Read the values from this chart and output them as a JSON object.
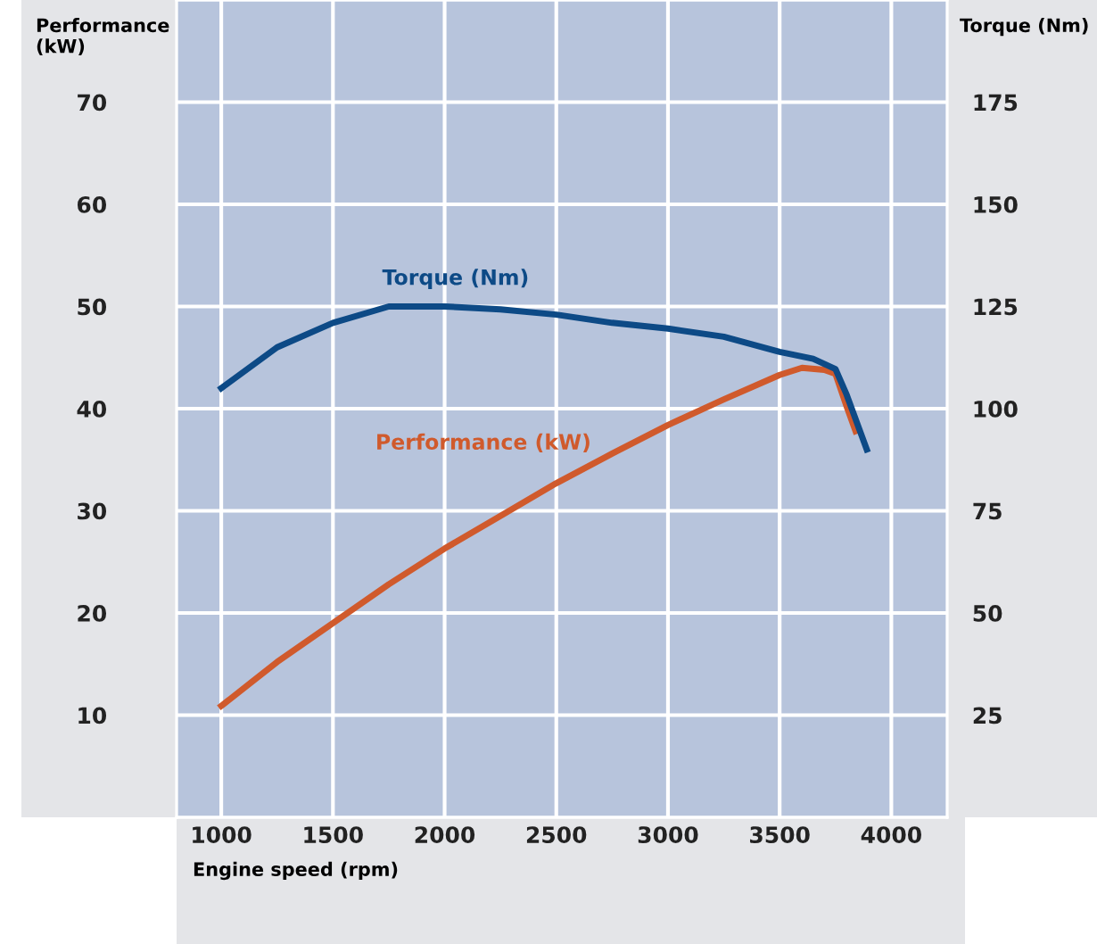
{
  "chart_data": {
    "type": "line",
    "xlabel": "Engine speed (rpm)",
    "ylabel": "Performance\n(kW)",
    "y2label": "Torque (Nm)",
    "series": [
      {
        "name": "Torque (Nm)",
        "color": "#0d4a86",
        "axis": "y2",
        "x": [
          1000,
          1250,
          1500,
          1750,
          2000,
          2250,
          2500,
          2750,
          3000,
          3250,
          3500,
          3650,
          3750,
          3800,
          3890
        ],
        "values": [
          105,
          115,
          121,
          125,
          125,
          124.3,
          123,
          121,
          119.6,
          117.6,
          113.9,
          112.2,
          109.7,
          103.4,
          90
        ]
      },
      {
        "name": "Performance (kW)",
        "color": "#d05a2c",
        "x": [
          1000,
          1250,
          1500,
          1750,
          2000,
          2250,
          2500,
          2750,
          3000,
          3250,
          3500,
          3600,
          3700,
          3750,
          3800,
          3840
        ],
        "values": [
          10.9,
          15.2,
          19.0,
          22.8,
          26.3,
          29.5,
          32.7,
          35.6,
          38.4,
          40.9,
          43.3,
          44.0,
          43.8,
          43.4,
          40.2,
          37.8
        ]
      }
    ],
    "xlim": [
      800,
      4250
    ],
    "xticks": [
      1000,
      1500,
      2000,
      2500,
      3000,
      3500,
      4000
    ],
    "ylim": [
      0,
      80
    ],
    "yticks": [
      10,
      20,
      30,
      40,
      50,
      60,
      70
    ],
    "y2lim": [
      0,
      200
    ],
    "y2ticks": [
      25,
      50,
      75,
      100,
      125,
      150,
      175
    ],
    "grid": true,
    "legend": false,
    "marker": "none",
    "line_style": "solid"
  }
}
